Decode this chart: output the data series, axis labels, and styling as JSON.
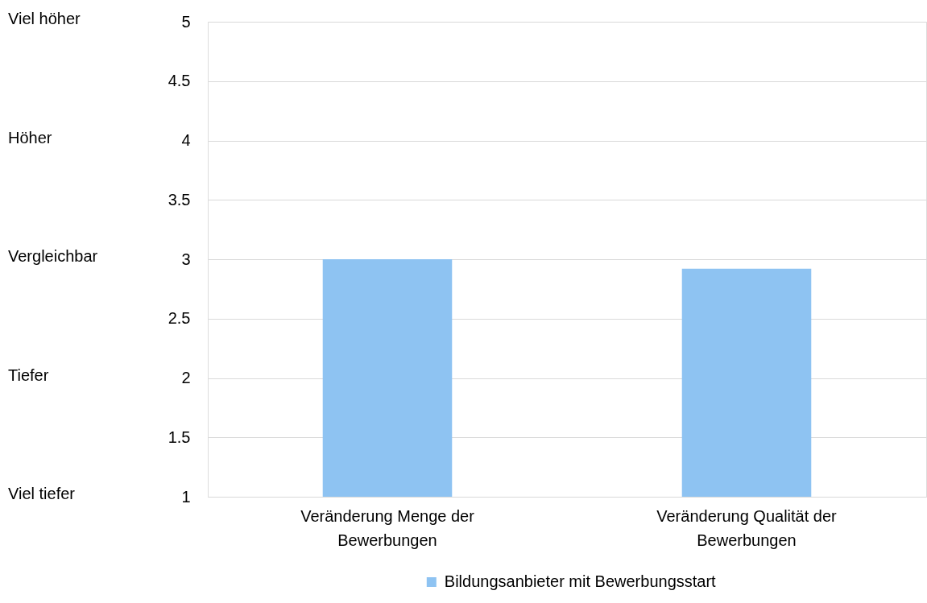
{
  "chart_data": {
    "type": "bar",
    "categories": [
      "Veränderung Menge der Bewerbungen",
      "Veränderung Qualität der Bewerbungen"
    ],
    "series": [
      {
        "name": "Bildungsanbieter mit Bewerbungsstart",
        "color": "#8ec3f2",
        "values": [
          3.0,
          2.92
        ]
      }
    ],
    "ylim": [
      1,
      5
    ],
    "yticks": [
      1,
      1.5,
      2,
      2.5,
      3,
      3.5,
      4,
      4.5,
      5
    ],
    "annotations": [
      "Viel höher",
      "Höher",
      "Vergleichbar",
      "Tiefer",
      "Viel tiefer"
    ],
    "grid": "y",
    "legend": "bottom"
  }
}
